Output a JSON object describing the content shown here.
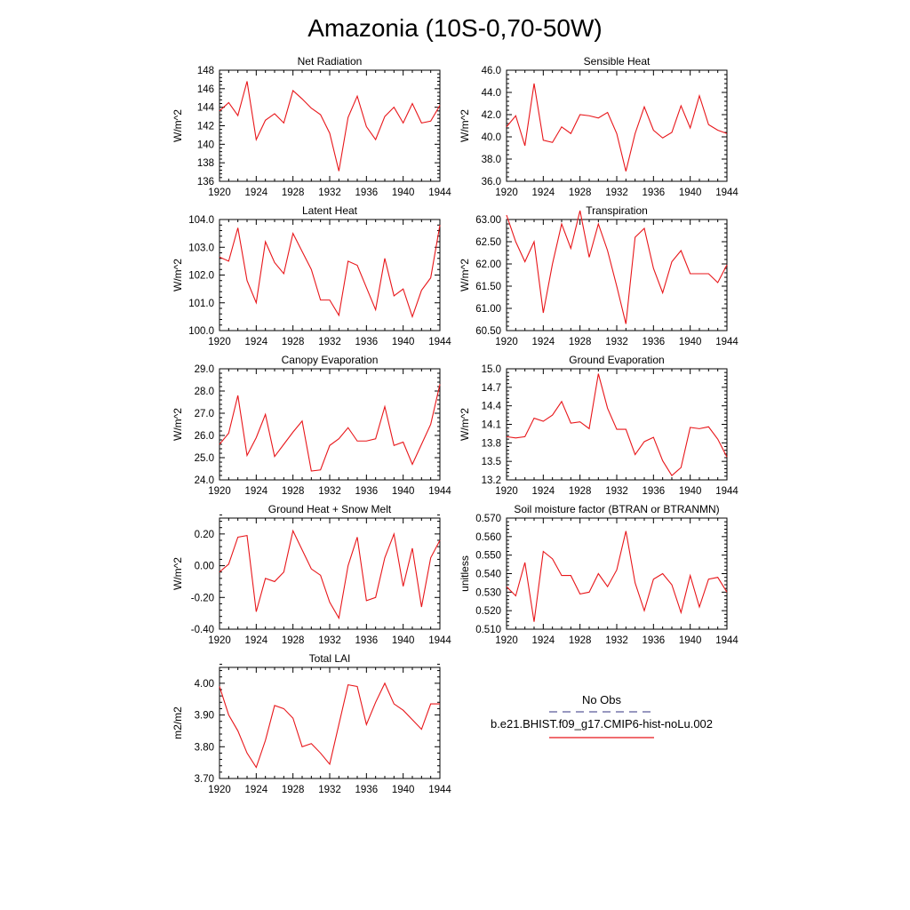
{
  "page_title": "Amazonia (10S-0,70-50W)",
  "colors": {
    "model": "#e8161a",
    "obs": "#5a5a9a",
    "axis": "#000000"
  },
  "legend": {
    "obs_label": "No Obs",
    "model_label": "b.e21.BHIST.f09_g17.CMIP6-hist-noLu.002"
  },
  "chart_data": [
    {
      "type": "line",
      "title": "Net Radiation",
      "ylabel": "W/m^2",
      "xlim": [
        1920,
        1944
      ],
      "ylim": [
        136,
        148
      ],
      "yticks": [
        136,
        138,
        140,
        142,
        144,
        146,
        148
      ],
      "ytick_labels": [
        "136",
        "138",
        "140",
        "142",
        "144",
        "146",
        "148"
      ],
      "xticks": [
        1920,
        1924,
        1928,
        1932,
        1936,
        1940,
        1944
      ],
      "xtick_labels": [
        "1920",
        "1924",
        "1928",
        "1932",
        "1936",
        "1940",
        "1944"
      ],
      "x": [
        1920,
        1921,
        1922,
        1923,
        1924,
        1925,
        1926,
        1927,
        1928,
        1929,
        1930,
        1931,
        1932,
        1933,
        1934,
        1935,
        1936,
        1937,
        1938,
        1939,
        1940,
        1941,
        1942,
        1943,
        1944
      ],
      "series": [
        {
          "values": [
            143.6,
            144.5,
            143.1,
            146.8,
            140.5,
            142.6,
            143.3,
            142.3,
            145.8,
            144.9,
            143.9,
            143.2,
            141.2,
            137.1,
            142.9,
            145.2,
            141.9,
            140.5,
            143.0,
            144.0,
            142.3,
            144.4,
            142.3,
            142.5,
            144.2
          ]
        }
      ]
    },
    {
      "type": "line",
      "title": "Sensible Heat",
      "ylabel": "W/m^2",
      "xlim": [
        1920,
        1944
      ],
      "ylim": [
        36,
        46
      ],
      "yticks": [
        36,
        38,
        40,
        42,
        44,
        46
      ],
      "ytick_labels": [
        "36.0",
        "38.0",
        "40.0",
        "42.0",
        "44.0",
        "46.0"
      ],
      "xticks": [
        1920,
        1924,
        1928,
        1932,
        1936,
        1940,
        1944
      ],
      "xtick_labels": [
        "1920",
        "1924",
        "1928",
        "1932",
        "1936",
        "1940",
        "1944"
      ],
      "x": [
        1920,
        1921,
        1922,
        1923,
        1924,
        1925,
        1926,
        1927,
        1928,
        1929,
        1930,
        1931,
        1932,
        1933,
        1934,
        1935,
        1936,
        1937,
        1938,
        1939,
        1940,
        1941,
        1942,
        1943,
        1944
      ],
      "series": [
        {
          "values": [
            40.9,
            41.9,
            39.2,
            44.8,
            39.7,
            39.5,
            40.9,
            40.3,
            42.0,
            41.9,
            41.7,
            42.2,
            40.3,
            36.9,
            40.3,
            42.7,
            40.6,
            39.9,
            40.4,
            42.8,
            40.8,
            43.7,
            41.1,
            40.6,
            40.3
          ]
        }
      ]
    },
    {
      "type": "line",
      "title": "Latent Heat",
      "ylabel": "W/m^2",
      "xlim": [
        1920,
        1944
      ],
      "ylim": [
        100,
        104
      ],
      "yticks": [
        100,
        101,
        102,
        103,
        104
      ],
      "ytick_labels": [
        "100.0",
        "101.0",
        "102.0",
        "103.0",
        "104.0"
      ],
      "xticks": [
        1920,
        1924,
        1928,
        1932,
        1936,
        1940,
        1944
      ],
      "xtick_labels": [
        "1920",
        "1924",
        "1928",
        "1932",
        "1936",
        "1940",
        "1944"
      ],
      "x": [
        1920,
        1921,
        1922,
        1923,
        1924,
        1925,
        1926,
        1927,
        1928,
        1929,
        1930,
        1931,
        1932,
        1933,
        1934,
        1935,
        1936,
        1937,
        1938,
        1939,
        1940,
        1941,
        1942,
        1943,
        1944
      ],
      "series": [
        {
          "values": [
            102.65,
            102.5,
            103.7,
            101.8,
            101.0,
            103.2,
            102.45,
            102.05,
            103.5,
            102.85,
            102.2,
            101.1,
            101.1,
            100.55,
            102.5,
            102.35,
            101.55,
            100.75,
            102.6,
            101.25,
            101.5,
            100.5,
            101.45,
            101.9,
            103.8
          ]
        }
      ]
    },
    {
      "type": "line",
      "title": "Transpiration",
      "ylabel": "W/m^2",
      "xlim": [
        1920,
        1944
      ],
      "ylim": [
        60.5,
        63.0
      ],
      "yticks": [
        60.5,
        61.0,
        61.5,
        62.0,
        62.5,
        63.0
      ],
      "ytick_labels": [
        "60.50",
        "61.00",
        "61.50",
        "62.00",
        "62.50",
        "63.00"
      ],
      "xticks": [
        1920,
        1924,
        1928,
        1932,
        1936,
        1940,
        1944
      ],
      "xtick_labels": [
        "1920",
        "1924",
        "1928",
        "1932",
        "1936",
        "1940",
        "1944"
      ],
      "x": [
        1920,
        1921,
        1922,
        1923,
        1924,
        1925,
        1926,
        1927,
        1928,
        1929,
        1930,
        1931,
        1932,
        1933,
        1934,
        1935,
        1936,
        1937,
        1938,
        1939,
        1940,
        1941,
        1942,
        1943,
        1944
      ],
      "series": [
        {
          "values": [
            63.1,
            62.5,
            62.05,
            62.5,
            60.9,
            62.0,
            62.9,
            62.35,
            63.2,
            62.15,
            62.9,
            62.3,
            61.5,
            60.65,
            62.6,
            62.8,
            61.9,
            61.35,
            62.05,
            62.3,
            61.78,
            61.78,
            61.78,
            61.58,
            61.98
          ]
        }
      ]
    },
    {
      "type": "line",
      "title": "Canopy Evaporation",
      "ylabel": "W/m^2",
      "xlim": [
        1920,
        1944
      ],
      "ylim": [
        24,
        29
      ],
      "yticks": [
        24,
        25,
        26,
        27,
        28,
        29
      ],
      "ytick_labels": [
        "24.0",
        "25.0",
        "26.0",
        "27.0",
        "28.0",
        "29.0"
      ],
      "xticks": [
        1920,
        1924,
        1928,
        1932,
        1936,
        1940,
        1944
      ],
      "xtick_labels": [
        "1920",
        "1924",
        "1928",
        "1932",
        "1936",
        "1940",
        "1944"
      ],
      "x": [
        1920,
        1921,
        1922,
        1923,
        1924,
        1925,
        1926,
        1927,
        1928,
        1929,
        1930,
        1931,
        1932,
        1933,
        1934,
        1935,
        1936,
        1937,
        1938,
        1939,
        1940,
        1941,
        1942,
        1943,
        1944
      ],
      "series": [
        {
          "values": [
            25.6,
            26.1,
            27.8,
            25.1,
            25.9,
            26.95,
            25.05,
            25.6,
            26.15,
            26.65,
            24.4,
            24.45,
            25.55,
            25.85,
            26.35,
            25.75,
            25.75,
            25.85,
            27.3,
            25.55,
            25.7,
            24.7,
            25.6,
            26.5,
            28.3
          ]
        }
      ]
    },
    {
      "type": "line",
      "title": "Ground Evaporation",
      "ylabel": "W/m^2",
      "xlim": [
        1920,
        1944
      ],
      "ylim": [
        13.2,
        15.0
      ],
      "yticks": [
        13.2,
        13.5,
        13.8,
        14.1,
        14.4,
        14.7,
        15.0
      ],
      "ytick_labels": [
        "13.2",
        "13.5",
        "13.8",
        "14.1",
        "14.4",
        "14.7",
        "15.0"
      ],
      "xticks": [
        1920,
        1924,
        1928,
        1932,
        1936,
        1940,
        1944
      ],
      "xtick_labels": [
        "1920",
        "1924",
        "1928",
        "1932",
        "1936",
        "1940",
        "1944"
      ],
      "x": [
        1920,
        1921,
        1922,
        1923,
        1924,
        1925,
        1926,
        1927,
        1928,
        1929,
        1930,
        1931,
        1932,
        1933,
        1934,
        1935,
        1936,
        1937,
        1938,
        1939,
        1940,
        1941,
        1942,
        1943,
        1944
      ],
      "series": [
        {
          "values": [
            13.9,
            13.88,
            13.9,
            14.2,
            14.15,
            14.25,
            14.47,
            14.12,
            14.14,
            14.03,
            14.92,
            14.36,
            14.02,
            14.02,
            13.61,
            13.82,
            13.89,
            13.51,
            13.27,
            13.4,
            14.05,
            14.03,
            14.06,
            13.86,
            13.57
          ]
        }
      ]
    },
    {
      "type": "line",
      "title": "Ground Heat + Snow Melt",
      "ylabel": "W/m^2",
      "xlim": [
        1920,
        1944
      ],
      "ylim": [
        -0.4,
        0.3
      ],
      "yticks": [
        -0.4,
        -0.2,
        0.0,
        0.2
      ],
      "ytick_labels": [
        "-0.40",
        "-0.20",
        "0.00",
        "0.20"
      ],
      "xticks": [
        1920,
        1924,
        1928,
        1932,
        1936,
        1940,
        1944
      ],
      "xtick_labels": [
        "1920",
        "1924",
        "1928",
        "1932",
        "1936",
        "1940",
        "1944"
      ],
      "x": [
        1920,
        1921,
        1922,
        1923,
        1924,
        1925,
        1926,
        1927,
        1928,
        1929,
        1930,
        1931,
        1932,
        1933,
        1934,
        1935,
        1936,
        1937,
        1938,
        1939,
        1940,
        1941,
        1942,
        1943,
        1944
      ],
      "series": [
        {
          "values": [
            -0.04,
            0.01,
            0.18,
            0.19,
            -0.29,
            -0.08,
            -0.1,
            -0.04,
            0.22,
            0.1,
            -0.02,
            -0.06,
            -0.23,
            -0.33,
            0.0,
            0.18,
            -0.22,
            -0.2,
            0.05,
            0.2,
            -0.13,
            0.11,
            -0.26,
            0.05,
            0.16
          ]
        }
      ]
    },
    {
      "type": "line",
      "title": "Soil moisture factor (BTRAN or BTRANMN)",
      "ylabel": "unitless",
      "xlim": [
        1920,
        1944
      ],
      "ylim": [
        0.51,
        0.57
      ],
      "yticks": [
        0.51,
        0.52,
        0.53,
        0.54,
        0.55,
        0.56,
        0.57
      ],
      "ytick_labels": [
        "0.510",
        "0.520",
        "0.530",
        "0.540",
        "0.550",
        "0.560",
        "0.570"
      ],
      "xticks": [
        1920,
        1924,
        1928,
        1932,
        1936,
        1940,
        1944
      ],
      "xtick_labels": [
        "1920",
        "1924",
        "1928",
        "1932",
        "1936",
        "1940",
        "1944"
      ],
      "x": [
        1920,
        1921,
        1922,
        1923,
        1924,
        1925,
        1926,
        1927,
        1928,
        1929,
        1930,
        1931,
        1932,
        1933,
        1934,
        1935,
        1936,
        1937,
        1938,
        1939,
        1940,
        1941,
        1942,
        1943,
        1944
      ],
      "series": [
        {
          "values": [
            0.533,
            0.528,
            0.546,
            0.514,
            0.552,
            0.548,
            0.539,
            0.539,
            0.529,
            0.53,
            0.54,
            0.533,
            0.542,
            0.563,
            0.535,
            0.52,
            0.537,
            0.54,
            0.534,
            0.519,
            0.539,
            0.522,
            0.537,
            0.538,
            0.53
          ]
        }
      ]
    },
    {
      "type": "line",
      "title": "Total LAI",
      "ylabel": "m2/m2",
      "xlim": [
        1920,
        1944
      ],
      "ylim": [
        3.7,
        4.05
      ],
      "yticks": [
        3.7,
        3.8,
        3.9,
        4.0
      ],
      "ytick_labels": [
        "3.70",
        "3.80",
        "3.90",
        "4.00"
      ],
      "xticks": [
        1920,
        1924,
        1928,
        1932,
        1936,
        1940,
        1944
      ],
      "xtick_labels": [
        "1920",
        "1924",
        "1928",
        "1932",
        "1936",
        "1940",
        "1944"
      ],
      "x": [
        1920,
        1921,
        1922,
        1923,
        1924,
        1925,
        1926,
        1927,
        1928,
        1929,
        1930,
        1931,
        1932,
        1933,
        1934,
        1935,
        1936,
        1937,
        1938,
        1939,
        1940,
        1941,
        1942,
        1943,
        1944
      ],
      "series": [
        {
          "values": [
            3.99,
            3.9,
            3.85,
            3.78,
            3.735,
            3.82,
            3.93,
            3.92,
            3.89,
            3.8,
            3.81,
            3.78,
            3.745,
            3.87,
            3.995,
            3.99,
            3.87,
            3.94,
            4.0,
            3.935,
            3.915,
            3.885,
            3.855,
            3.935,
            3.935
          ]
        }
      ]
    }
  ]
}
